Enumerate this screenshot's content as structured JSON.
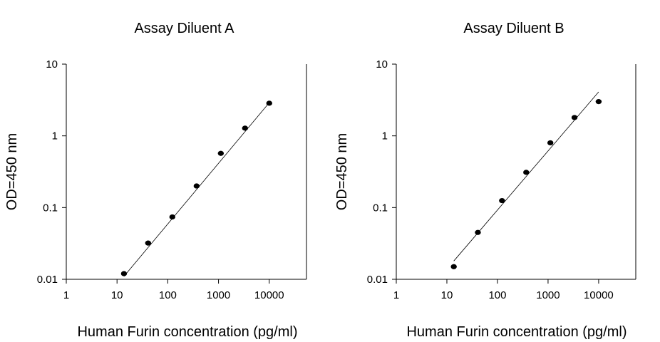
{
  "chart_data": [
    {
      "type": "scatter",
      "title": "Assay Diluent A",
      "xlabel": "Human Furin concentration (pg/ml)",
      "ylabel": "OD=450 nm",
      "x_scale": "log",
      "y_scale": "log",
      "xlim": [
        1,
        10000
      ],
      "ylim": [
        0.01,
        10
      ],
      "x_ticks": [
        "1",
        "10",
        "100",
        "1000",
        "10000"
      ],
      "y_ticks": [
        "0.01",
        "0.1",
        "1",
        "10"
      ],
      "points": [
        {
          "x": 13.7,
          "y": 0.012
        },
        {
          "x": 41,
          "y": 0.032
        },
        {
          "x": 123,
          "y": 0.074
        },
        {
          "x": 370,
          "y": 0.2
        },
        {
          "x": 1111,
          "y": 0.57
        },
        {
          "x": 3333,
          "y": 1.28
        },
        {
          "x": 10000,
          "y": 2.85
        }
      ],
      "fit_line": [
        {
          "x": 13.7,
          "y": 0.011
        },
        {
          "x": 10000,
          "y": 2.9
        }
      ]
    },
    {
      "type": "scatter",
      "title": "Assay Diluent B",
      "xlabel": "Human Furin concentration (pg/ml)",
      "ylabel": "OD=450 nm",
      "x_scale": "log",
      "y_scale": "log",
      "xlim": [
        1,
        10000
      ],
      "ylim": [
        0.01,
        10
      ],
      "x_ticks": [
        "1",
        "10",
        "100",
        "1000",
        "10000"
      ],
      "y_ticks": [
        "0.01",
        "0.1",
        "1",
        "10"
      ],
      "points": [
        {
          "x": 13.7,
          "y": 0.015
        },
        {
          "x": 41,
          "y": 0.045
        },
        {
          "x": 123,
          "y": 0.125
        },
        {
          "x": 370,
          "y": 0.31
        },
        {
          "x": 1111,
          "y": 0.8
        },
        {
          "x": 3333,
          "y": 1.8
        },
        {
          "x": 10000,
          "y": 3.0
        }
      ],
      "fit_line": [
        {
          "x": 13.7,
          "y": 0.018
        },
        {
          "x": 10000,
          "y": 4.1
        }
      ]
    }
  ]
}
